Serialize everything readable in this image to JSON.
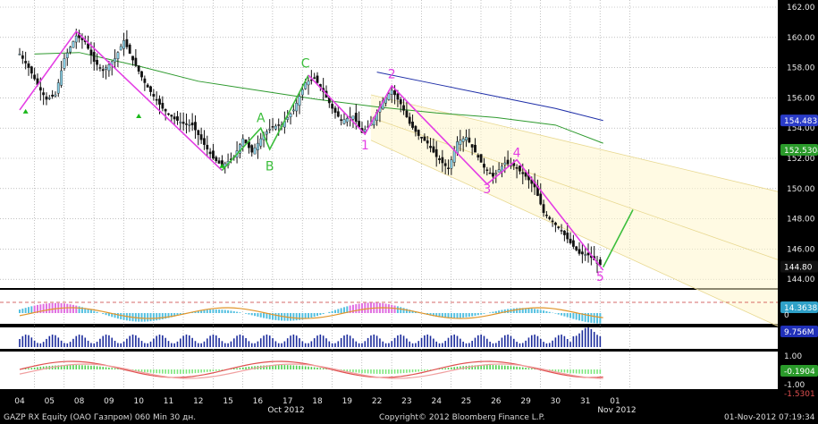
{
  "status_bar": {
    "left": "GAZP RX Equity (ОАО Газпром) 060 Min 30 дн.",
    "center": "Copyright© 2012 Bloomberg Finance L.P.",
    "right": "01-Nov-2012 07:19:34"
  },
  "colors": {
    "background": "#000000",
    "panel_bg": "#ffffff",
    "grid": "#9a9a9a",
    "candle": "#111111",
    "wave": "#e43ee4",
    "wave_forecast": "#3cbe3c",
    "ma_green": "#2e9a2e",
    "ma_blue": "#1f2fa8",
    "channel": "#e8d890",
    "last_price_bg": "#000000",
    "ma_blue_label_bg": "#2a3cc8",
    "ma_green_label_bg": "#2a9a2a"
  },
  "chart_data": {
    "type": "candlestick",
    "ylim": [
      143.5,
      162.5
    ],
    "y_ticks": [
      "162.00",
      "160.00",
      "158.00",
      "156.00",
      "154.00",
      "152.00",
      "150.00",
      "148.00",
      "146.00",
      "144.00"
    ],
    "x_ticks": [
      "04",
      "05",
      "08",
      "09",
      "10",
      "11",
      "12",
      "15",
      "16",
      "17",
      "18",
      "19",
      "22",
      "23",
      "24",
      "25",
      "26",
      "29",
      "30",
      "31",
      "01"
    ],
    "x_month_labels": [
      "Oct 2012",
      "Nov 2012"
    ],
    "price_path": [
      [
        0,
        158.9
      ],
      [
        0.3,
        158.0
      ],
      [
        0.7,
        156.5
      ],
      [
        0.9,
        155.9
      ],
      [
        1.2,
        156.2
      ],
      [
        1.5,
        158.6
      ],
      [
        1.9,
        160.1
      ],
      [
        2.2,
        159.7
      ],
      [
        2.5,
        158.4
      ],
      [
        2.8,
        157.8
      ],
      [
        3.2,
        158.6
      ],
      [
        3.5,
        159.8
      ],
      [
        3.8,
        158.5
      ],
      [
        4.2,
        157.0
      ],
      [
        4.5,
        156.1
      ],
      [
        4.8,
        155.3
      ],
      [
        5.2,
        154.6
      ],
      [
        5.5,
        154.3
      ],
      [
        5.8,
        154.2
      ],
      [
        6.2,
        152.9
      ],
      [
        6.5,
        152.0
      ],
      [
        6.8,
        151.5
      ],
      [
        7.2,
        152.1
      ],
      [
        7.5,
        153.3
      ],
      [
        7.8,
        152.4
      ],
      [
        8.2,
        153.6
      ],
      [
        8.5,
        154.1
      ],
      [
        8.8,
        154.2
      ],
      [
        9.2,
        155.2
      ],
      [
        9.6,
        157.0
      ],
      [
        9.9,
        157.3
      ],
      [
        10.2,
        156.4
      ],
      [
        10.5,
        155.3
      ],
      [
        10.8,
        154.5
      ],
      [
        11.2,
        154.8
      ],
      [
        11.5,
        153.7
      ],
      [
        11.8,
        154.3
      ],
      [
        12.2,
        155.8
      ],
      [
        12.5,
        156.5
      ],
      [
        12.8,
        155.6
      ],
      [
        13.1,
        154.3
      ],
      [
        13.4,
        153.5
      ],
      [
        13.7,
        153.0
      ],
      [
        14.0,
        152.1
      ],
      [
        14.4,
        151.3
      ],
      [
        14.7,
        153.1
      ],
      [
        15.0,
        153.4
      ],
      [
        15.3,
        152.4
      ],
      [
        15.6,
        151.4
      ],
      [
        15.9,
        150.8
      ],
      [
        16.3,
        151.7
      ],
      [
        16.6,
        151.5
      ],
      [
        17.0,
        150.8
      ],
      [
        17.3,
        150.1
      ],
      [
        17.6,
        148.4
      ],
      [
        17.9,
        147.8
      ],
      [
        18.2,
        147.2
      ],
      [
        18.5,
        146.4
      ],
      [
        18.8,
        145.7
      ],
      [
        19.1,
        145.6
      ],
      [
        19.4,
        145.1
      ],
      [
        19.6,
        144.8
      ]
    ],
    "series": [
      {
        "name": "",
        "values": [
          [
            0.5,
            158.9
          ],
          [
            2,
            159.0
          ],
          [
            4,
            158.1
          ],
          [
            6,
            157.1
          ],
          [
            8,
            156.5
          ],
          [
            10,
            155.9
          ],
          [
            12,
            155.4
          ],
          [
            14,
            155.0
          ],
          [
            16,
            154.7
          ],
          [
            18,
            154.2
          ],
          [
            19.6,
            153.0
          ]
        ]
      },
      {
        "name": "",
        "values": [
          [
            12,
            157.7
          ],
          [
            14,
            156.9
          ],
          [
            16,
            156.1
          ],
          [
            18,
            155.3
          ],
          [
            19.6,
            154.5
          ]
        ]
      }
    ],
    "wave_labels": [
      {
        "t": "C",
        "x": 9.6,
        "y": 158.0,
        "color": "green"
      },
      {
        "t": "A",
        "x": 8.1,
        "y": 154.4,
        "color": "green"
      },
      {
        "t": "B",
        "x": 8.4,
        "y": 151.2,
        "color": "green"
      },
      {
        "t": "1",
        "x": 11.6,
        "y": 152.6,
        "color": "pink"
      },
      {
        "t": "2",
        "x": 12.5,
        "y": 157.3,
        "color": "pink"
      },
      {
        "t": "3",
        "x": 15.7,
        "y": 149.7,
        "color": "pink"
      },
      {
        "t": "4",
        "x": 16.7,
        "y": 152.1,
        "color": "pink"
      },
      {
        "t": "5",
        "x": 19.5,
        "y": 143.9,
        "color": "pink"
      }
    ],
    "forecast": [
      [
        19.6,
        144.8
      ],
      [
        20.6,
        148.6
      ]
    ],
    "price_labels": [
      "154.4831",
      "152.5304",
      "144.80"
    ],
    "indicator_labels": [
      "14.3638",
      "0",
      "9.756M",
      "1.00",
      "-0.1904",
      "-1.00",
      "-1.5301"
    ]
  }
}
